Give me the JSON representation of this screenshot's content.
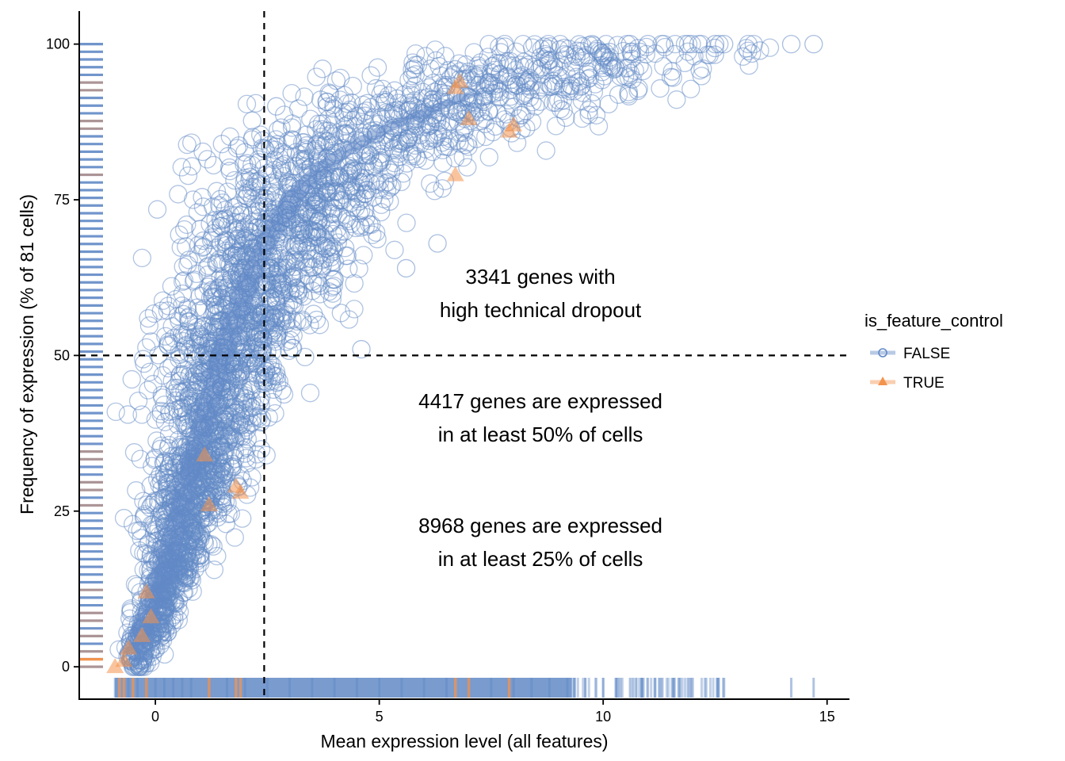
{
  "chart_data": {
    "type": "scatter",
    "title": "",
    "xlabel": "Mean expression level (all features)",
    "ylabel": "Frequency of expression (% of 81 cells)",
    "xlim": [
      -1.7,
      15.5
    ],
    "ylim": [
      -5.2,
      105.3
    ],
    "x_ticks": [
      "0",
      "5",
      "10",
      "15"
    ],
    "y_ticks": [
      "0",
      "25",
      "50",
      "75",
      "100"
    ],
    "x_tick_values": [
      0,
      5,
      10,
      15
    ],
    "y_tick_values": [
      0,
      25,
      50,
      75,
      100
    ],
    "grid": false,
    "vline_x": 2.43,
    "hline_y": 50,
    "legend": {
      "title": "is_feature_control",
      "position": "right",
      "entries": [
        {
          "label": "FALSE",
          "color": "#6289c6",
          "marker": "circle"
        },
        {
          "label": "TRUE",
          "color": "#f4934d",
          "marker": "triangle"
        }
      ]
    },
    "annotations": [
      {
        "lines": [
          "3341 genes with",
          "high technical dropout"
        ],
        "x": 8.6,
        "y": 60
      },
      {
        "lines": [
          "4417 genes are expressed",
          "in at least 50% of cells"
        ],
        "x": 8.6,
        "y": 40
      },
      {
        "lines": [
          "8968 genes are expressed",
          "in at least 25% of cells"
        ],
        "x": 8.6,
        "y": 20
      }
    ],
    "series": [
      {
        "name": "FALSE",
        "description": "dense cloud of genes (open circles)",
        "trend_x": [
          -0.8,
          -0.5,
          0,
          0.5,
          1,
          1.5,
          2,
          2.5,
          3,
          3.5,
          4,
          5,
          6,
          7,
          8,
          9,
          10,
          11,
          12.5
        ],
        "trend_y": [
          0,
          3,
          12,
          24,
          38,
          51,
          61,
          69,
          75,
          79,
          82,
          86,
          89,
          92,
          95,
          97,
          99,
          100,
          100
        ],
        "points_x": [
          14.2,
          14.7,
          10.6,
          11.0,
          12.5,
          12.7,
          9.4,
          4.6,
          6.3,
          5.6,
          3.9,
          2.7
        ],
        "points_y": [
          100,
          100,
          100,
          100,
          100,
          100,
          98,
          51,
          68,
          64,
          92,
          90
        ]
      },
      {
        "name": "TRUE",
        "description": "feature controls (filled triangles)",
        "points_x": [
          6.7,
          6.8,
          7.0,
          7.9,
          8.0,
          6.7,
          1.8,
          1.9,
          1.2,
          1.1,
          -0.2,
          -0.1,
          -0.3,
          -0.6,
          -0.7,
          -0.9
        ],
        "points_y": [
          93,
          94,
          88,
          86,
          87,
          79,
          29,
          28,
          26,
          34,
          12,
          8,
          5,
          3,
          1,
          0
        ]
      }
    ],
    "rug_x_false": [
      -0.9,
      -0.6,
      -0.4,
      -0.2,
      0,
      0.2,
      0.4,
      0.6,
      0.8,
      1.2,
      1.6,
      2,
      2.5,
      3,
      3.5,
      4,
      4.5,
      5,
      5.5,
      6,
      6.5,
      7,
      7.5,
      8,
      8.4,
      8.8,
      9.2,
      9.6,
      10,
      10.3,
      10.6,
      10.9,
      11.3,
      11.7,
      12,
      12.3,
      12.7,
      14.2,
      14.7
    ],
    "rug_x_true": [
      -0.8,
      -0.7,
      -0.5,
      -0.2,
      1.2,
      1.8,
      1.9,
      6.7,
      7.0,
      7.9
    ],
    "rug_y_true": [
      0,
      1,
      3,
      5,
      8,
      12,
      26,
      28,
      29,
      34,
      79,
      86,
      87,
      88,
      93,
      94
    ]
  }
}
